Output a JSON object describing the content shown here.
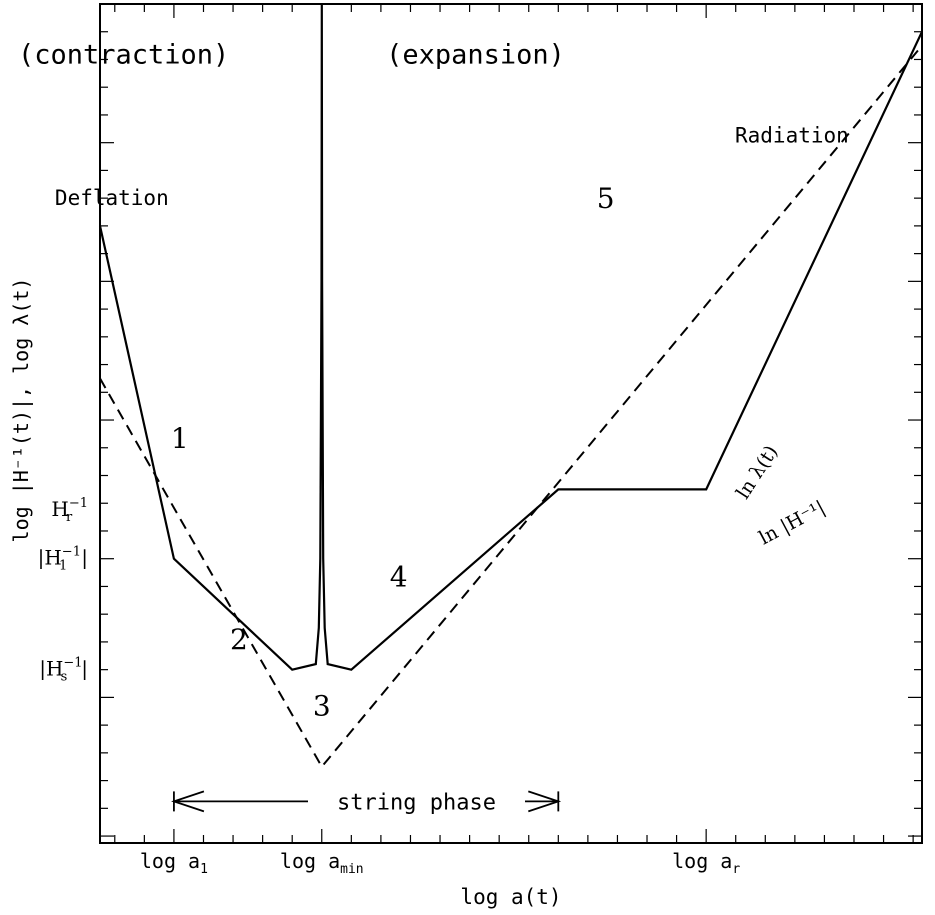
{
  "chart_data": {
    "type": "line",
    "xlabel": "log a(t)",
    "ylabel": "log |H⁻¹(t)|,  log λ(t)",
    "x_ticks": [
      {
        "x": -5,
        "base": "log a",
        "sub": "1"
      },
      {
        "x": 0,
        "base": "log a",
        "sub": "min"
      },
      {
        "x": 13,
        "base": "log a",
        "sub": "r"
      }
    ],
    "y_ticks": [
      {
        "y": 3.5,
        "base": "H",
        "sub": "r",
        "sup": "−1",
        "abs": false
      },
      {
        "y": 0,
        "base": "H",
        "sub": "1",
        "sup": "−1",
        "abs": true
      },
      {
        "y": -8,
        "base": "H",
        "sub": "s",
        "sup": "−1",
        "abs": true
      }
    ],
    "region_labels": [
      {
        "text": "(contraction)",
        "x": -6.7,
        "y": 35.7
      },
      {
        "text": "(expansion)",
        "x": 5.2,
        "y": 35.7
      }
    ],
    "phase_labels": [
      {
        "text": "Deflation",
        "x": -7.1,
        "y": 25.5
      },
      {
        "text": "Radiation",
        "x": 15.9,
        "y": 30.0
      }
    ],
    "points": [
      {
        "label": "1",
        "x": -4.8,
        "y": 8.0
      },
      {
        "label": "2",
        "x": -2.8,
        "y": -6.5
      },
      {
        "label": "3",
        "x": 0.0,
        "y": -11.3
      },
      {
        "label": "4",
        "x": 2.6,
        "y": -2.0
      },
      {
        "label": "5",
        "x": 9.6,
        "y": 25.3
      }
    ],
    "curve_labels": [
      {
        "text": "ln λ(t)",
        "x": 14.9,
        "y": 6.0,
        "rot": -57
      },
      {
        "text": "ln |H⁻¹|",
        "x": 16.0,
        "y": 2.2,
        "rot": -28
      }
    ],
    "arrow": {
      "text": "string phase",
      "x_from": -5,
      "x_to": 8,
      "y": -17.5
    },
    "series": [
      {
        "id": "H_inverse",
        "style": "solid",
        "points": [
          [
            -7.5,
            24
          ],
          [
            -5,
            0
          ],
          [
            -1,
            -8
          ],
          [
            -0.2,
            -7.6
          ],
          [
            -0.1,
            -5
          ],
          [
            -0.05,
            0
          ],
          [
            -0.01,
            20
          ],
          [
            0,
            40
          ],
          [
            0.01,
            20
          ],
          [
            0.05,
            0
          ],
          [
            0.1,
            -5
          ],
          [
            0.2,
            -7.6
          ],
          [
            1,
            -8
          ],
          [
            8,
            5
          ],
          [
            13,
            5
          ],
          [
            20.3,
            38
          ]
        ]
      },
      {
        "id": "lambda",
        "style": "dashed",
        "points": [
          [
            -7.5,
            13
          ],
          [
            0,
            -15
          ],
          [
            20.3,
            37
          ]
        ]
      }
    ],
    "xlim": [
      -7.5,
      20.3
    ],
    "ylim": [
      -20.5,
      40
    ]
  }
}
